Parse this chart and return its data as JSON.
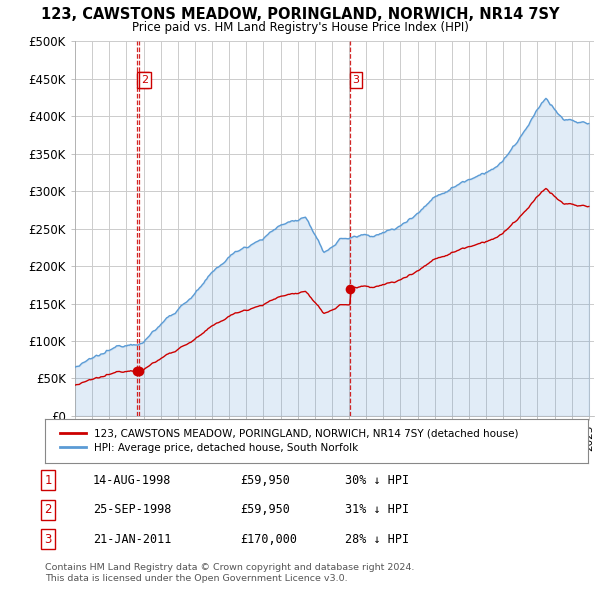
{
  "title": "123, CAWSTONS MEADOW, PORINGLAND, NORWICH, NR14 7SY",
  "subtitle": "Price paid vs. HM Land Registry's House Price Index (HPI)",
  "ylim": [
    0,
    500000
  ],
  "yticks": [
    0,
    50000,
    100000,
    150000,
    200000,
    250000,
    300000,
    350000,
    400000,
    450000,
    500000
  ],
  "ytick_labels": [
    "£0",
    "£50K",
    "£100K",
    "£150K",
    "£200K",
    "£250K",
    "£300K",
    "£350K",
    "£400K",
    "£450K",
    "£500K"
  ],
  "hpi_color": "#5b9bd5",
  "hpi_fill_color": "#ddeeff",
  "price_color": "#cc0000",
  "vline_color": "#cc0000",
  "grid_color": "#cccccc",
  "bg_color": "#ffffff",
  "legend_label_price": "123, CAWSTONS MEADOW, PORINGLAND, NORWICH, NR14 7SY (detached house)",
  "legend_label_hpi": "HPI: Average price, detached house, South Norfolk",
  "transactions": [
    {
      "label": "1",
      "date_num": 1998.62,
      "price": 59950
    },
    {
      "label": "2",
      "date_num": 1998.73,
      "price": 59950
    },
    {
      "label": "3",
      "date_num": 2011.05,
      "price": 170000
    }
  ],
  "table_rows": [
    [
      "1",
      "14-AUG-1998",
      "£59,950",
      "30% ↓ HPI"
    ],
    [
      "2",
      "25-SEP-1998",
      "£59,950",
      "31% ↓ HPI"
    ],
    [
      "3",
      "21-JAN-2011",
      "£170,000",
      "28% ↓ HPI"
    ]
  ],
  "footnote1": "Contains HM Land Registry data © Crown copyright and database right 2024.",
  "footnote2": "This data is licensed under the Open Government Licence v3.0."
}
